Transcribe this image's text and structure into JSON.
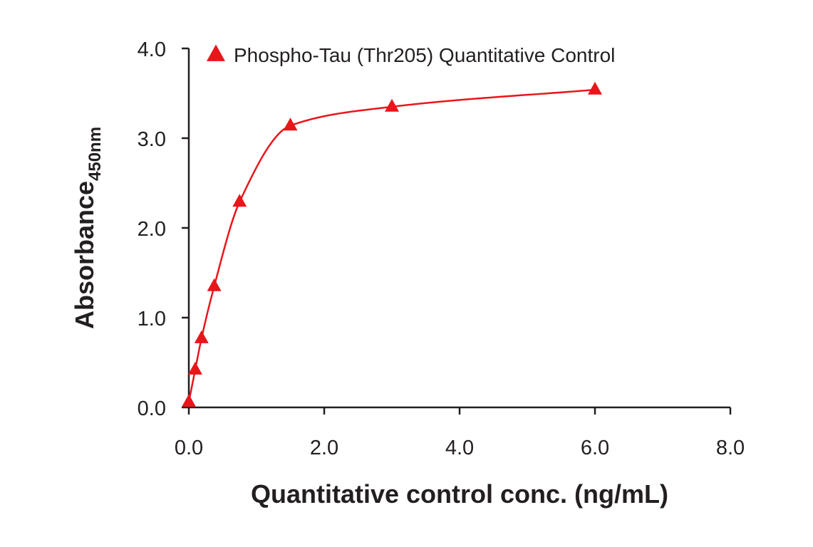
{
  "chart_data": {
    "type": "scatter",
    "xlabel": "Quantitative control conc. (ng/mL)",
    "ylabel_main": "Absorbance",
    "ylabel_sub": "450nm",
    "xlim": [
      0,
      8
    ],
    "ylim": [
      0,
      4
    ],
    "x_ticks": [
      "0.0",
      "2.0",
      "4.0",
      "6.0",
      "8.0"
    ],
    "y_ticks": [
      "0.0",
      "1.0",
      "2.0",
      "3.0",
      "4.0"
    ],
    "x_tick_values": [
      0,
      2,
      4,
      6,
      8
    ],
    "y_tick_values": [
      0,
      1,
      2,
      3,
      4
    ],
    "grid": false,
    "legend_position": "top-left",
    "series": [
      {
        "name": "Phospho-Tau (Thr205) Quantitative Control",
        "color": "#e8161b",
        "marker": "triangle",
        "fit_curve": true,
        "points": [
          {
            "x": 0.0,
            "y": 0.06
          },
          {
            "x": 0.094,
            "y": 0.42
          },
          {
            "x": 0.1875,
            "y": 0.77
          },
          {
            "x": 0.375,
            "y": 1.35
          },
          {
            "x": 0.75,
            "y": 2.29
          },
          {
            "x": 1.5,
            "y": 3.14
          },
          {
            "x": 3.0,
            "y": 3.35
          },
          {
            "x": 6.0,
            "y": 3.54
          }
        ]
      }
    ]
  }
}
